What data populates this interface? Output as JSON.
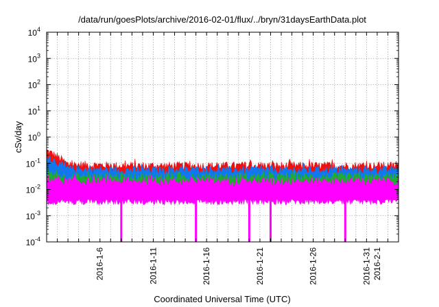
{
  "chart_data": {
    "type": "area",
    "title": "/data/run/goesPlots/archive/2016-02-01/flux/../bryn/31daysEarthData.plot",
    "xlabel": "Coordinated Universal Time (UTC)",
    "ylabel": "cSv/day",
    "yscale": "log",
    "ylim": [
      0.0001,
      10000
    ],
    "xlim": [
      "2016-01-01",
      "2016-02-03"
    ],
    "grid": true,
    "y_ticks": [
      {
        "base": "10",
        "exp": "-4",
        "value": 0.0001
      },
      {
        "base": "10",
        "exp": "-3",
        "value": 0.001
      },
      {
        "base": "10",
        "exp": "-2",
        "value": 0.01
      },
      {
        "base": "10",
        "exp": "-1",
        "value": 0.1
      },
      {
        "base": "10",
        "exp": "0",
        "value": 1
      },
      {
        "base": "10",
        "exp": "1",
        "value": 10
      },
      {
        "base": "10",
        "exp": "2",
        "value": 100
      },
      {
        "base": "10",
        "exp": "3",
        "value": 1000
      },
      {
        "base": "10",
        "exp": "4",
        "value": 10000
      }
    ],
    "x_ticks": [
      "2016-1-6",
      "2016-1-11",
      "2016-1-16",
      "2016-1-21",
      "2016-1-26",
      "2016-1-31",
      "2016-2-1"
    ],
    "colors": {
      "red": "#ee1111",
      "blue": "#1177ee",
      "green": "#22aa33",
      "teal": "#11aaaa",
      "magenta": "#ff00ff"
    },
    "series": [
      {
        "color": "red",
        "x": [
          "2016-01-01",
          "2016-01-02",
          "2016-01-03",
          "2016-01-08",
          "2016-01-18",
          "2016-01-28",
          "2016-02-03"
        ],
        "values": [
          0.3,
          0.18,
          0.09,
          0.08,
          0.08,
          0.08,
          0.08
        ]
      },
      {
        "color": "blue",
        "x": [
          "2016-01-01",
          "2016-01-02",
          "2016-01-03",
          "2016-01-08",
          "2016-01-18",
          "2016-01-28",
          "2016-02-03"
        ],
        "values": [
          0.2,
          0.1,
          0.06,
          0.055,
          0.055,
          0.055,
          0.055
        ]
      },
      {
        "color": "green",
        "x": [
          "2016-01-01",
          "2016-01-03",
          "2016-02-03"
        ],
        "values": [
          0.04,
          0.03,
          0.03
        ]
      },
      {
        "color": "magenta",
        "x": [
          "2016-01-01",
          "2016-01-03",
          "2016-02-03"
        ],
        "values": [
          0.025,
          0.02,
          0.02
        ]
      }
    ],
    "floor": 0.005,
    "dips": [
      {
        "x": "2016-01-08",
        "value": 0.0001
      },
      {
        "x": "2016-01-15",
        "value": 0.0001
      },
      {
        "x": "2016-01-20",
        "value": 0.0001
      },
      {
        "x": "2016-01-22",
        "value": 0.0001
      },
      {
        "x": "2016-01-29",
        "value": 0.0001
      }
    ]
  }
}
